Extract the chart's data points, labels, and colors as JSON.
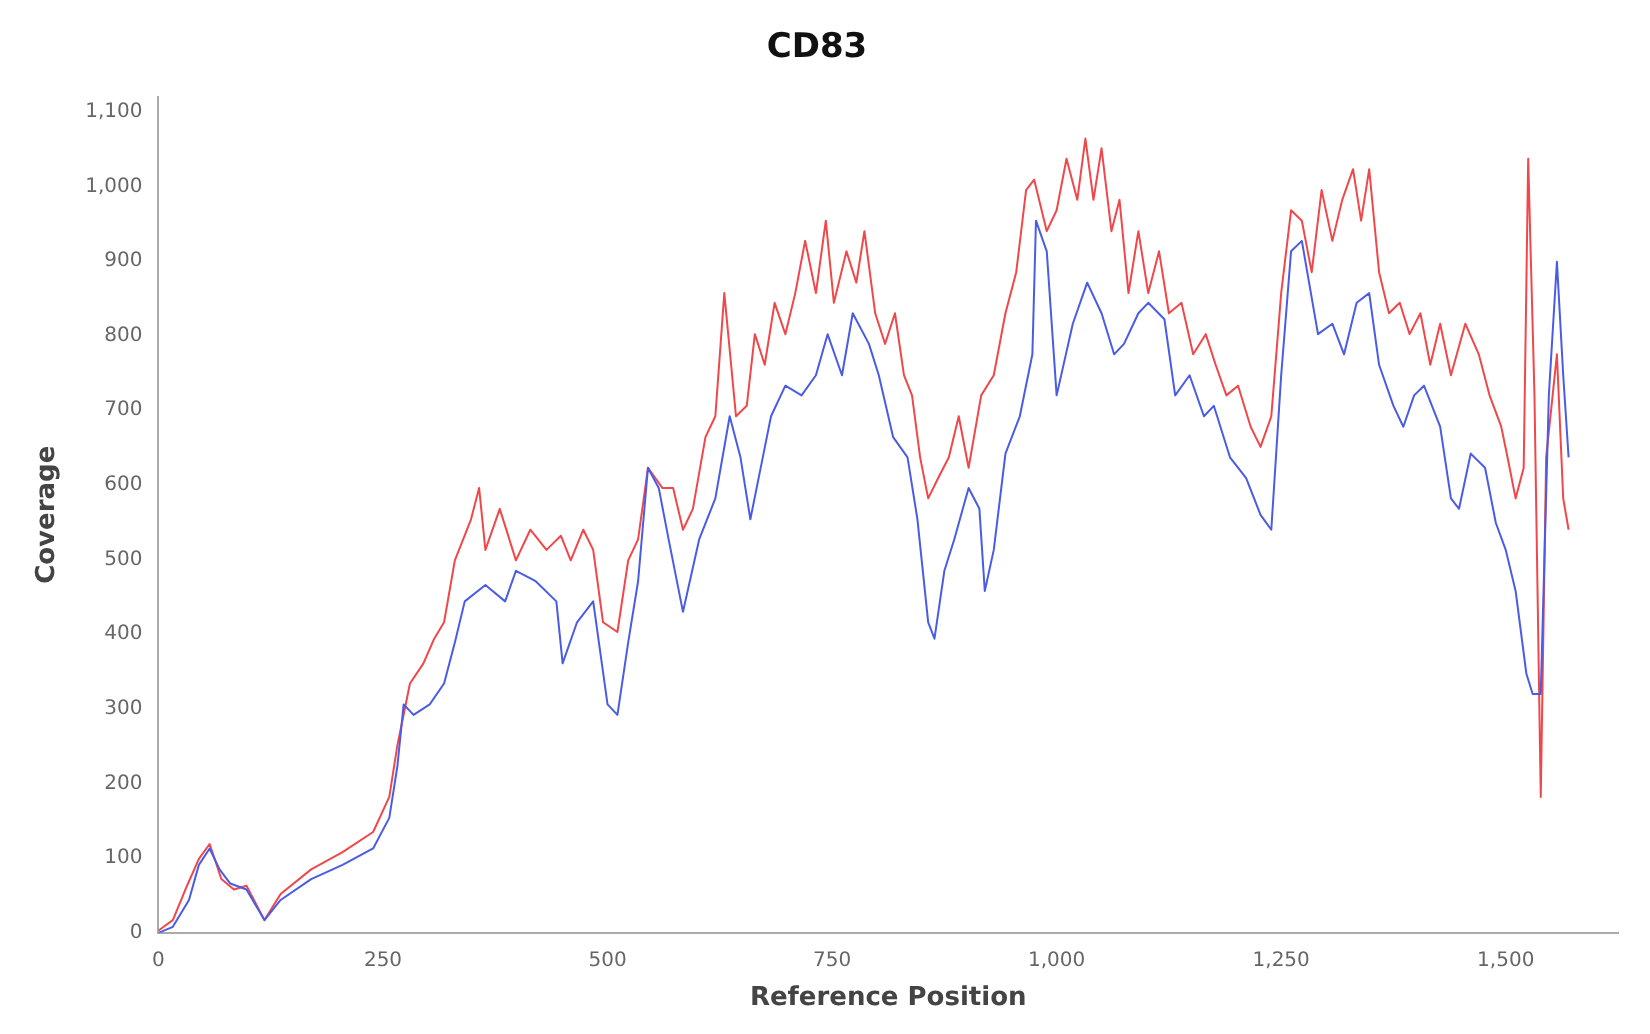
{
  "chart_data": {
    "type": "line",
    "title": "CD83",
    "xlabel": "Reference Position",
    "ylabel": "Coverage",
    "xlim": [
      0,
      1625
    ],
    "ylim": [
      0,
      1120
    ],
    "xticks": [
      0,
      250,
      500,
      750,
      {
        "value": 1000,
        "label": "1,000"
      },
      {
        "value": 1250,
        "label": "1,250"
      },
      {
        "value": 1500,
        "label": "1,500"
      }
    ],
    "yticks": [
      0,
      100,
      200,
      300,
      400,
      500,
      600,
      700,
      800,
      900,
      {
        "value": 1000,
        "label": "1,000"
      },
      {
        "value": 1100,
        "label": "1,100"
      }
    ],
    "grid": false,
    "legend": false,
    "marker": "none",
    "line_style": "solid",
    "series": [
      {
        "color": "#4a5ce6",
        "x": [
          0,
          16,
          34,
          45,
          57,
          68,
          80,
          98,
          118,
          136,
          170,
          205,
          239,
          257,
          266,
          273,
          284,
          302,
          318,
          330,
          341,
          364,
          386,
          398,
          420,
          443,
          450,
          466,
          484,
          500,
          511,
          523,
          534,
          545,
          557,
          568,
          584,
          602,
          620,
          636,
          648,
          659,
          682,
          698,
          716,
          732,
          745,
          761,
          773,
          791,
          802,
          818,
          834,
          845,
          857,
          864,
          875,
          886,
          902,
          914,
          920,
          930,
          943,
          959,
          973,
          977,
          989,
          1000,
          1018,
          1034,
          1050,
          1064,
          1075,
          1091,
          1102,
          1120,
          1132,
          1148,
          1164,
          1175,
          1193,
          1211,
          1227,
          1239,
          1250,
          1261,
          1273,
          1291,
          1307,
          1320,
          1334,
          1348,
          1359,
          1375,
          1386,
          1398,
          1409,
          1427,
          1439,
          1448,
          1461,
          1477,
          1489,
          1500,
          1511,
          1523,
          1530,
          1539,
          1548,
          1557,
          1564,
          1570
        ],
        "values": [
          0,
          8,
          44,
          91,
          113,
          85,
          66,
          58,
          17,
          44,
          72,
          91,
          113,
          154,
          223,
          306,
          292,
          306,
          334,
          389,
          444,
          466,
          444,
          485,
          471,
          444,
          361,
          416,
          444,
          306,
          292,
          389,
          471,
          623,
          596,
          527,
          430,
          527,
          582,
          692,
          637,
          554,
          692,
          733,
          720,
          747,
          802,
          747,
          830,
          789,
          747,
          664,
          637,
          554,
          416,
          394,
          485,
          527,
          596,
          568,
          458,
          513,
          642,
          692,
          775,
          954,
          913,
          720,
          816,
          871,
          830,
          775,
          789,
          830,
          844,
          822,
          720,
          747,
          692,
          706,
          637,
          609,
          560,
          540,
          747,
          913,
          927,
          802,
          816,
          775,
          844,
          857,
          761,
          706,
          678,
          720,
          733,
          678,
          582,
          568,
          642,
          623,
          549,
          513,
          458,
          347,
          320,
          320,
          720,
          899,
          747,
          637
        ]
      },
      {
        "color": "#f0484a",
        "x": [
          0,
          16,
          30,
          45,
          57,
          70,
          84,
          98,
          118,
          136,
          170,
          205,
          239,
          257,
          266,
          280,
          295,
          307,
          318,
          330,
          348,
          357,
          364,
          380,
          398,
          414,
          432,
          448,
          459,
          473,
          484,
          495,
          511,
          523,
          534,
          545,
          561,
          573,
          584,
          595,
          609,
          620,
          630,
          643,
          655,
          664,
          675,
          686,
          698,
          709,
          720,
          732,
          743,
          752,
          766,
          777,
          786,
          798,
          809,
          820,
          830,
          839,
          848,
          857,
          868,
          880,
          891,
          902,
          916,
          930,
          943,
          955,
          966,
          975,
          989,
          1000,
          1011,
          1023,
          1032,
          1041,
          1050,
          1061,
          1070,
          1080,
          1091,
          1102,
          1114,
          1125,
          1139,
          1152,
          1166,
          1177,
          1189,
          1202,
          1216,
          1227,
          1239,
          1250,
          1261,
          1273,
          1284,
          1295,
          1307,
          1318,
          1330,
          1339,
          1348,
          1359,
          1370,
          1382,
          1393,
          1405,
          1416,
          1427,
          1439,
          1455,
          1470,
          1482,
          1495,
          1502,
          1511,
          1520,
          1525,
          1532,
          1539,
          1545,
          1557,
          1564,
          1570
        ],
        "values": [
          3,
          17,
          58,
          99,
          119,
          72,
          58,
          63,
          17,
          52,
          85,
          108,
          135,
          182,
          251,
          334,
          361,
          394,
          416,
          499,
          554,
          596,
          513,
          568,
          499,
          540,
          513,
          532,
          499,
          540,
          513,
          416,
          403,
          499,
          527,
          623,
          596,
          596,
          540,
          568,
          664,
          692,
          857,
          692,
          706,
          802,
          761,
          844,
          802,
          857,
          927,
          857,
          954,
          844,
          913,
          871,
          940,
          830,
          789,
          830,
          747,
          720,
          637,
          582,
          609,
          637,
          692,
          623,
          720,
          747,
          830,
          885,
          995,
          1009,
          940,
          968,
          1037,
          982,
          1064,
          982,
          1051,
          940,
          982,
          857,
          940,
          857,
          913,
          830,
          844,
          775,
          802,
          761,
          720,
          733,
          678,
          651,
          692,
          857,
          968,
          954,
          885,
          995,
          927,
          982,
          1023,
          954,
          1023,
          885,
          830,
          844,
          802,
          830,
          761,
          816,
          747,
          816,
          775,
          720,
          678,
          637,
          582,
          623,
          1037,
          720,
          182,
          637,
          775,
          582,
          540
        ]
      }
    ]
  }
}
